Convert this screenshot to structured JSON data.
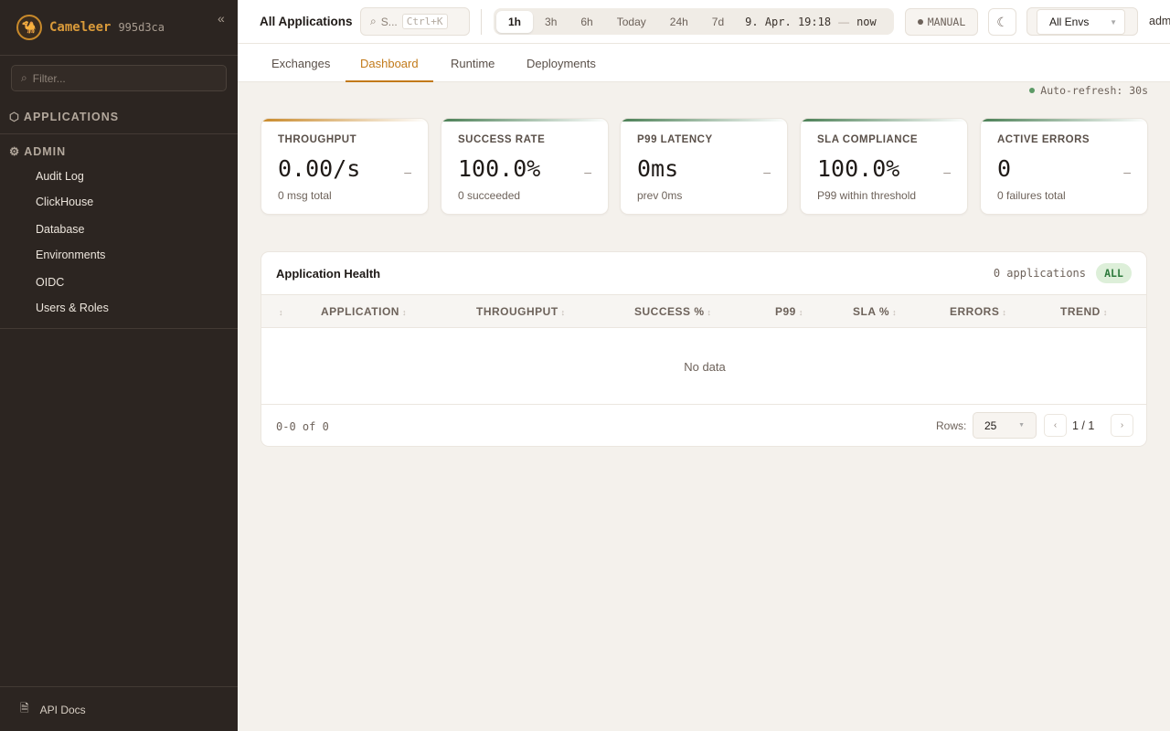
{
  "sidebar": {
    "brand": "Cameleer",
    "version": "995d3ca",
    "filter_placeholder": "Filter...",
    "applications_label": "APPLICATIONS",
    "admin_label": "ADMIN",
    "admin_items": [
      "Audit Log",
      "ClickHouse",
      "Database",
      "Environments",
      "OIDC",
      "Users & Roles"
    ],
    "api_docs": "API Docs"
  },
  "topbar": {
    "title": "All Applications",
    "search_placeholder": "S...",
    "search_shortcut": "Ctrl+K",
    "ranges": [
      "1h",
      "3h",
      "6h",
      "Today",
      "24h",
      "7d"
    ],
    "active_range": "1h",
    "range_start": "9. Apr. 19:18",
    "range_sep": "—",
    "range_end": "now",
    "manual_label": "MANUAL",
    "env_selected": "All Envs",
    "user": "adm"
  },
  "tabs": [
    "Exchanges",
    "Dashboard",
    "Runtime",
    "Deployments"
  ],
  "active_tab": "Dashboard",
  "auto_refresh": "Auto-refresh: 30s",
  "kpis": [
    {
      "label": "THROUGHPUT",
      "value": "0.00/s",
      "trend": "–",
      "sub": "0 msg total",
      "accent": "#c98a2b"
    },
    {
      "label": "SUCCESS RATE",
      "value": "100.0%",
      "trend": "–",
      "sub": "0 succeeded",
      "accent": "#4a7f55"
    },
    {
      "label": "P99 LATENCY",
      "value": "0ms",
      "trend": "–",
      "sub": "prev 0ms",
      "accent": "#4a7f55"
    },
    {
      "label": "SLA COMPLIANCE",
      "value": "100.0%",
      "trend": "–",
      "sub": "P99 within threshold",
      "accent": "#4a7f55"
    },
    {
      "label": "ACTIVE ERRORS",
      "value": "0",
      "trend": "–",
      "sub": "0 failures total",
      "accent": "#4a7f55"
    }
  ],
  "health": {
    "title": "Application Health",
    "count": "0 applications",
    "filter": "ALL",
    "columns": [
      "APPLICATION",
      "THROUGHPUT",
      "SUCCESS %",
      "P99",
      "SLA %",
      "ERRORS",
      "TREND"
    ],
    "empty": "No data",
    "range": "0-0 of 0",
    "rows_label": "Rows:",
    "rows_value": "25",
    "page": "1 / 1"
  }
}
